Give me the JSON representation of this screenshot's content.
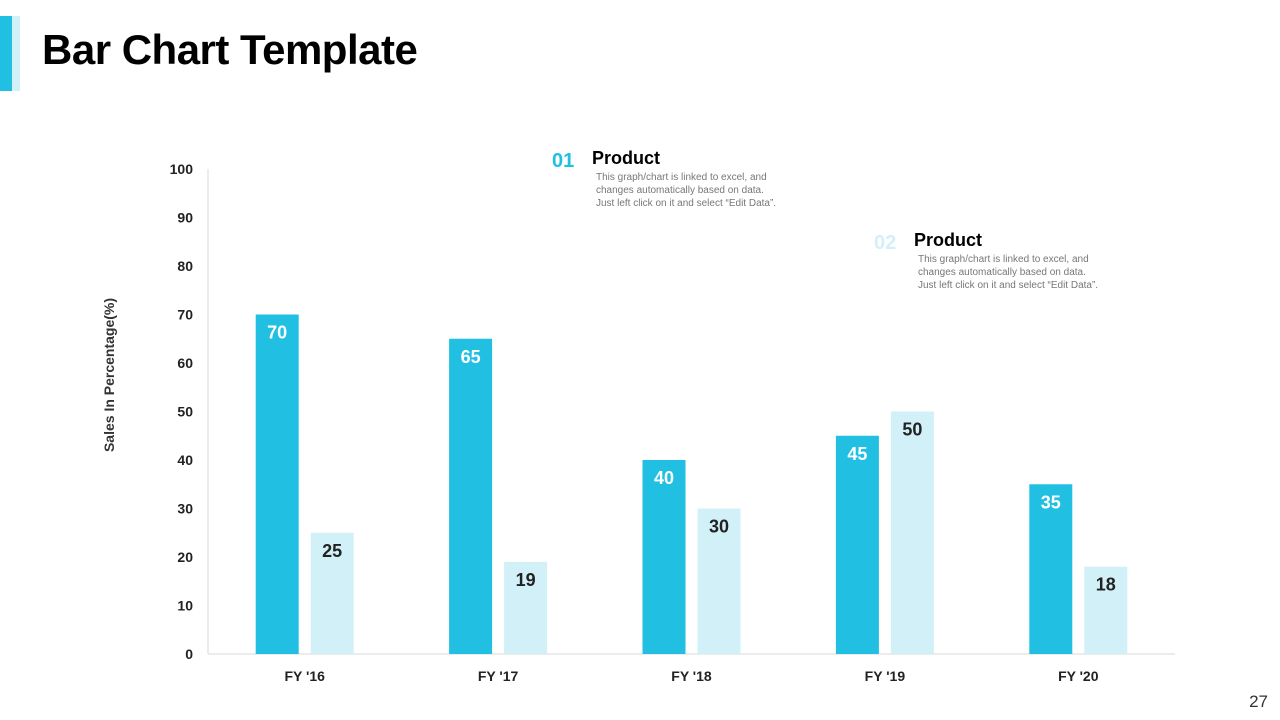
{
  "slide": {
    "title": "Bar Chart Template",
    "page_number": "27",
    "accent_color": "#21c0e3",
    "accent_light_color": "#d2f0f8"
  },
  "legend": [
    {
      "number": "01",
      "label": "Product",
      "color": "#21c0e3",
      "description": [
        "This graph/chart is linked to excel, and",
        "changes automatically based on data.",
        "Just left click on it and select “Edit Data”."
      ]
    },
    {
      "number": "02",
      "label": "Product",
      "color": "#d2f0f8",
      "description": [
        "This graph/chart is linked to excel, and",
        "changes automatically based on data.",
        "Just left click on it and select “Edit Data”."
      ]
    }
  ],
  "chart_data": {
    "type": "bar",
    "title": "",
    "xlabel": "",
    "ylabel": "Sales In Percentage(%)",
    "ylim": [
      0,
      100
    ],
    "yticks": [
      0,
      10,
      20,
      30,
      40,
      50,
      60,
      70,
      80,
      90,
      100
    ],
    "categories": [
      "FY '16",
      "FY '17",
      "FY '18",
      "FY '19",
      "FY '20"
    ],
    "series": [
      {
        "values": [
          70,
          65,
          40,
          45,
          35
        ],
        "color": "#21c0e3",
        "label_color": "#ffffff"
      },
      {
        "values": [
          25,
          19,
          30,
          50,
          18
        ],
        "color": "#d2f0f8",
        "label_color": "#222222"
      }
    ],
    "grid": false,
    "legend_position": "top-right"
  }
}
